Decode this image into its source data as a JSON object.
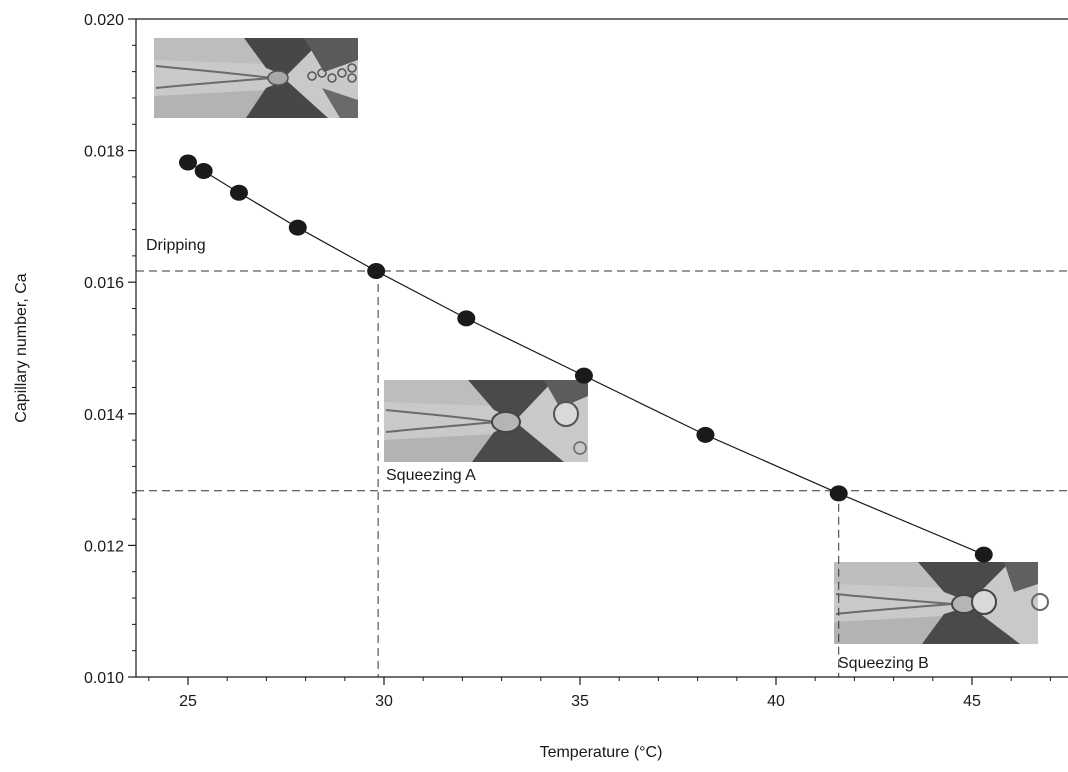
{
  "chart_data": {
    "type": "scatter",
    "xlabel": "Temperature (°C)",
    "ylabel": "Capillary number, Ca",
    "xlim": [
      24,
      48
    ],
    "ylim": [
      0.01,
      0.02
    ],
    "x_ticks": [
      25,
      30,
      35,
      40,
      45
    ],
    "x_tick_labels": [
      "25",
      "30",
      "35",
      "40",
      "45"
    ],
    "y_ticks": [
      0.01,
      0.012,
      0.014,
      0.016,
      0.018,
      0.02
    ],
    "y_tick_labels": [
      "0.010",
      "0.012",
      "0.014",
      "0.016",
      "0.018",
      "0.020"
    ],
    "grid": false,
    "series": [
      {
        "x": [
          25.0,
          25.4,
          26.3,
          27.8,
          29.8,
          32.1,
          35.1,
          38.2,
          41.6,
          45.3
        ],
        "y": [
          0.01782,
          0.01769,
          0.01736,
          0.01683,
          0.01617,
          0.01545,
          0.01458,
          0.01368,
          0.01279,
          0.01186
        ],
        "marker": "filled-circle",
        "line": "solid",
        "color": "#1a1a1a"
      }
    ],
    "reference_lines": {
      "horizontal": [
        0.01617,
        0.01283
      ],
      "vertical": [
        29.85,
        41.6
      ]
    },
    "annotations": [
      {
        "text": "Dripping"
      },
      {
        "text": "Squeezing A"
      },
      {
        "text": "Squeezing B"
      }
    ]
  }
}
